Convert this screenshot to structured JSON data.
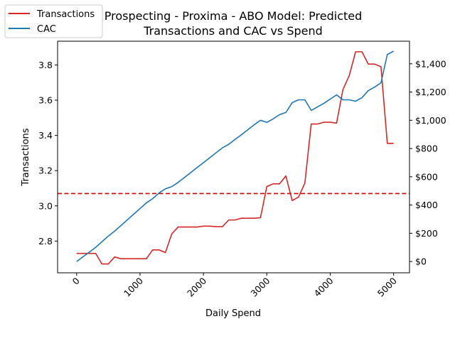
{
  "chart_data": {
    "type": "line",
    "title_lines": [
      "Prospecting - Proxima - ABO Model: Predicted",
      "Transactions and CAC vs Spend"
    ],
    "xlabel": "Daily Spend",
    "ylabel": "Transactions",
    "xlim": [
      -300,
      5250
    ],
    "ylim": [
      2.62,
      3.935
    ],
    "y2lim": [
      -80,
      1560
    ],
    "x_ticks": [
      0,
      1000,
      2000,
      3000,
      4000,
      5000
    ],
    "x_tick_labels": [
      "0",
      "1000",
      "2000",
      "3000",
      "4000",
      "5000"
    ],
    "y_ticks": [
      2.8,
      3.0,
      3.2,
      3.4,
      3.6,
      3.8
    ],
    "y_tick_labels": [
      "2.8",
      "3.0",
      "3.2",
      "3.4",
      "3.6",
      "3.8"
    ],
    "y2_ticks": [
      0,
      200,
      400,
      600,
      800,
      1000,
      1200,
      1400
    ],
    "y2_tick_labels": [
      "$0",
      "$200",
      "$400",
      "$600",
      "$800",
      "$1,000",
      "$1,200",
      "$1,400"
    ],
    "reference_line": {
      "axis": "left",
      "y": 3.07,
      "style": "dashed",
      "color": "#cc0000"
    },
    "legend": {
      "placement": "upper-left"
    },
    "grid": false,
    "x": [
      0,
      100,
      200,
      300,
      400,
      500,
      600,
      700,
      800,
      900,
      1000,
      1100,
      1200,
      1300,
      1400,
      1500,
      1600,
      1700,
      1800,
      1900,
      2000,
      2100,
      2200,
      2300,
      2400,
      2500,
      2600,
      2700,
      2800,
      2900,
      3000,
      3100,
      3200,
      3300,
      3400,
      3500,
      3600,
      3700,
      3800,
      3900,
      4000,
      4100,
      4200,
      4300,
      4400,
      4500,
      4600,
      4700,
      4800,
      4900,
      5000
    ],
    "series": [
      {
        "name": "Transactions",
        "axis": "left",
        "color": "#d62728",
        "values": [
          2.73,
          2.73,
          2.73,
          2.73,
          2.67,
          2.67,
          2.71,
          2.7,
          2.7,
          2.7,
          2.7,
          2.7,
          2.75,
          2.75,
          2.735,
          2.84,
          2.88,
          2.88,
          2.88,
          2.88,
          2.885,
          2.885,
          2.882,
          2.882,
          2.92,
          2.92,
          2.93,
          2.93,
          2.93,
          2.933,
          3.11,
          3.125,
          3.125,
          3.17,
          3.03,
          3.05,
          3.13,
          3.465,
          3.465,
          3.475,
          3.475,
          3.47,
          3.66,
          3.74,
          3.875,
          3.875,
          3.805,
          3.805,
          3.79,
          3.355,
          3.355
        ]
      },
      {
        "name": "CAC",
        "axis": "right",
        "color": "#1f77b4",
        "values": [
          0,
          33,
          66,
          100,
          140,
          180,
          215,
          255,
          295,
          335,
          375,
          415,
          445,
          485,
          515,
          530,
          560,
          595,
          630,
          665,
          700,
          735,
          770,
          805,
          830,
          865,
          898,
          933,
          968,
          1000,
          985,
          1010,
          1040,
          1055,
          1125,
          1145,
          1145,
          1070,
          1095,
          1120,
          1150,
          1180,
          1145,
          1145,
          1135,
          1160,
          1210,
          1235,
          1265,
          1465,
          1490
        ]
      }
    ]
  }
}
